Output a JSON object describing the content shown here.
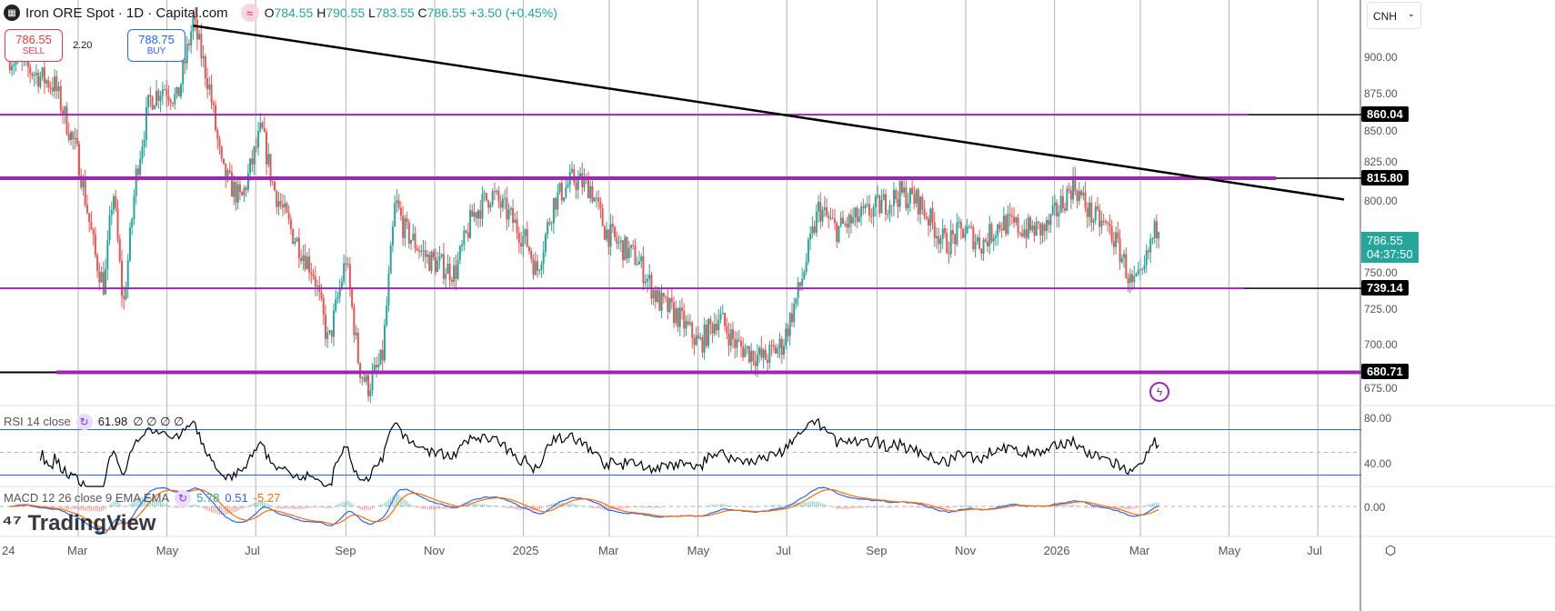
{
  "header": {
    "title": "Iron ORE Spot · 1D · Capital.com",
    "open": "784.55",
    "high": "790.55",
    "low": "783.55",
    "close": "786.55",
    "change": "+3.50 (+0.45%)",
    "o": "O",
    "h": "H",
    "l": "L",
    "c": "C"
  },
  "trade": {
    "sell_price": "786.55",
    "sell_label": "SELL",
    "buy_price": "788.75",
    "buy_label": "BUY",
    "spread": "2.20"
  },
  "currency": "CNH",
  "price_axis": [
    "900.00",
    "875.00",
    "850.00",
    "825.00",
    "800.00",
    "750.00",
    "725.00",
    "700.00",
    "675.00"
  ],
  "levels": [
    {
      "label": "860.04",
      "value": 860.04
    },
    {
      "label": "815.80",
      "value": 815.8
    },
    {
      "label": "739.14",
      "value": 739.14
    },
    {
      "label": "680.71",
      "value": 680.71
    }
  ],
  "current": {
    "price": "786.55",
    "countdown": "04:37:50"
  },
  "rsi": {
    "label": "RSI 14 close",
    "value": "61.98",
    "extra": "∅ ∅ ∅ ∅",
    "axis": [
      "80.00",
      "40.00"
    ]
  },
  "macd": {
    "label": "MACD 12 26 close 9 EMA EMA",
    "hist": "5.78",
    "macd": "0.51",
    "signal": "-5.27",
    "axis": "0.00"
  },
  "time_axis": [
    {
      "label": "24",
      "date": "2024-01-01"
    },
    {
      "label": "Mar",
      "date": "2024-03-01"
    },
    {
      "label": "May",
      "date": "2024-05-01"
    },
    {
      "label": "Jul",
      "date": "2024-07-01"
    },
    {
      "label": "Sep",
      "date": "2024-09-01"
    },
    {
      "label": "Nov",
      "date": "2024-11-01"
    },
    {
      "label": "2025",
      "date": "2025-01-01"
    },
    {
      "label": "Mar",
      "date": "2025-03-01"
    },
    {
      "label": "May",
      "date": "2025-05-01"
    },
    {
      "label": "Jul",
      "date": "2025-07-01"
    },
    {
      "label": "Sep",
      "date": "2025-09-01"
    },
    {
      "label": "Nov",
      "date": "2025-11-01"
    },
    {
      "label": "2026",
      "date": "2026-01-01"
    },
    {
      "label": "Mar",
      "date": "2026-03-01"
    },
    {
      "label": "May",
      "date": "2026-05-01"
    },
    {
      "label": "Jul",
      "date": "2026-07-01"
    }
  ],
  "branding": "TradingView",
  "colors": {
    "up": "#26a69a",
    "down": "#ef5350",
    "level": "#9c27b0",
    "rsi_band": "#2962ff",
    "macd": "#2962ff",
    "signal": "#ff6d00"
  },
  "chart_data": {
    "type": "candlestick",
    "symbol": "Iron ORE Spot",
    "interval": "1D",
    "trendline": [
      {
        "date": "2024-05-19",
        "price": 922
      },
      {
        "date": "2026-07-19",
        "price": 801
      }
    ],
    "close_path": [
      [
        "2024-01-14",
        900
      ],
      [
        "2024-02-14",
        880
      ],
      [
        "2024-03-01",
        830
      ],
      [
        "2024-03-13",
        760
      ],
      [
        "2024-03-19",
        740
      ],
      [
        "2024-03-25",
        810
      ],
      [
        "2024-04-01",
        725
      ],
      [
        "2024-04-10",
        820
      ],
      [
        "2024-04-19",
        870
      ],
      [
        "2024-04-29",
        880
      ],
      [
        "2024-05-08",
        870
      ],
      [
        "2024-05-19",
        925
      ],
      [
        "2024-05-30",
        880
      ],
      [
        "2024-06-08",
        820
      ],
      [
        "2024-06-21",
        800
      ],
      [
        "2024-07-05",
        850
      ],
      [
        "2024-07-13",
        810
      ],
      [
        "2024-07-25",
        780
      ],
      [
        "2024-08-10",
        750
      ],
      [
        "2024-08-20",
        700
      ],
      [
        "2024-09-01",
        760
      ],
      [
        "2024-09-10",
        685
      ],
      [
        "2024-09-16",
        670
      ],
      [
        "2024-09-26",
        690
      ],
      [
        "2024-10-05",
        800
      ],
      [
        "2024-10-11",
        780
      ],
      [
        "2024-10-27",
        760
      ],
      [
        "2024-11-15",
        750
      ],
      [
        "2024-11-27",
        790
      ],
      [
        "2024-12-10",
        805
      ],
      [
        "2024-12-22",
        790
      ],
      [
        "2025-01-04",
        770
      ],
      [
        "2025-01-10",
        750
      ],
      [
        "2025-01-22",
        800
      ],
      [
        "2025-02-04",
        815
      ],
      [
        "2025-02-16",
        810
      ],
      [
        "2025-02-26",
        780
      ],
      [
        "2025-03-07",
        770
      ],
      [
        "2025-03-20",
        760
      ],
      [
        "2025-04-04",
        730
      ],
      [
        "2025-04-17",
        720
      ],
      [
        "2025-05-02",
        700
      ],
      [
        "2025-05-15",
        720
      ],
      [
        "2025-05-27",
        700
      ],
      [
        "2025-06-15",
        690
      ],
      [
        "2025-06-28",
        700
      ],
      [
        "2025-07-10",
        740
      ],
      [
        "2025-07-23",
        795
      ],
      [
        "2025-08-04",
        780
      ],
      [
        "2025-08-23",
        790
      ],
      [
        "2025-09-17",
        805
      ],
      [
        "2025-09-29",
        800
      ],
      [
        "2025-10-18",
        770
      ],
      [
        "2025-10-31",
        780
      ],
      [
        "2025-11-12",
        770
      ],
      [
        "2025-11-25",
        785
      ],
      [
        "2025-12-13",
        780
      ],
      [
        "2025-12-26",
        780
      ],
      [
        "2026-01-14",
        812
      ],
      [
        "2026-01-26",
        790
      ],
      [
        "2026-02-08",
        780
      ],
      [
        "2026-02-17",
        760
      ],
      [
        "2026-02-23",
        740
      ],
      [
        "2026-03-02",
        745
      ],
      [
        "2026-03-08",
        770
      ],
      [
        "2026-03-14",
        786.55
      ]
    ]
  }
}
